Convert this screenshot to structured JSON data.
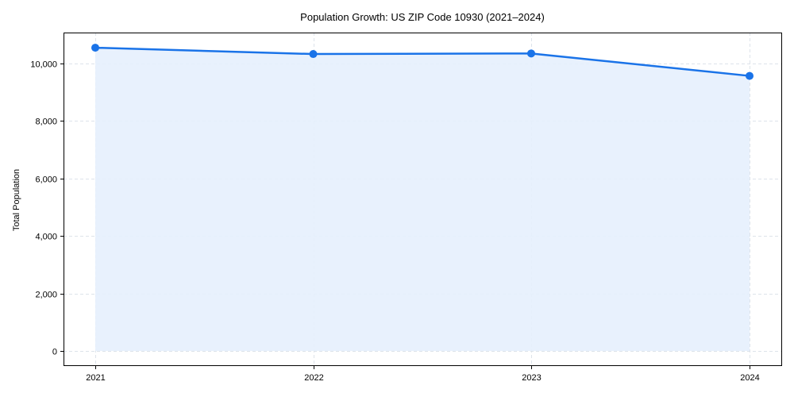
{
  "chart_data": {
    "type": "area",
    "title": "Population Growth: US ZIP Code 10930 (2021–2024)",
    "xlabel": "",
    "ylabel": "Total Population",
    "categories": [
      "2021",
      "2022",
      "2023",
      "2024"
    ],
    "series": [
      {
        "name": "Total Population",
        "values": [
          10550,
          10330,
          10350,
          9570
        ]
      }
    ],
    "ylim": [
      -500,
      11050
    ],
    "yticks": [
      0,
      2000,
      4000,
      6000,
      8000,
      10000
    ],
    "ytick_labels": [
      "0",
      "2,000",
      "4,000",
      "6,000",
      "8,000",
      "10,000"
    ],
    "grid": true,
    "grid_style": "dashed",
    "legend": "none",
    "markers": true,
    "colors": {
      "line": "#1a73e8",
      "fill": "#e6f0fd",
      "grid": "#dde3ea",
      "axis": "#000000"
    }
  }
}
